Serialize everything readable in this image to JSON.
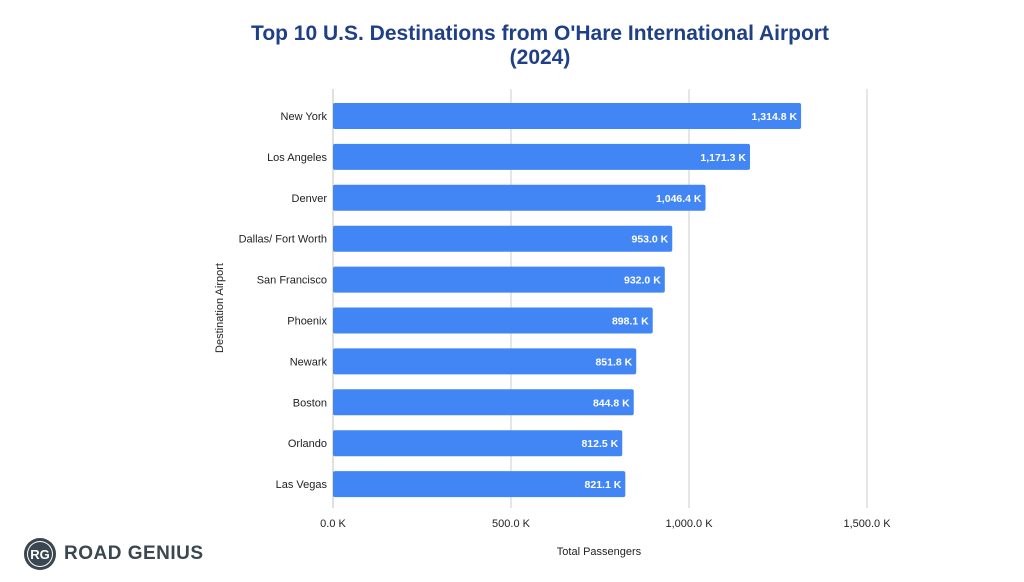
{
  "brand": {
    "badge": "RG",
    "name": "ROAD GENIUS"
  },
  "chart_data": {
    "type": "bar",
    "orientation": "horizontal",
    "title_line1": "Top 10 U.S. Destinations from O'Hare International Airport",
    "title_line2": "(2024)",
    "xlabel": "Total Passengers",
    "ylabel": "Destination Airport",
    "xlim": [
      0,
      1500
    ],
    "x_ticks": [
      {
        "value": 0,
        "label": "0.0 K"
      },
      {
        "value": 500,
        "label": "500.0 K"
      },
      {
        "value": 1000,
        "label": "1,000.0 K"
      },
      {
        "value": 1500,
        "label": "1,500.0 K"
      }
    ],
    "grid": true,
    "bar_color": "#4285f4",
    "grid_color": "#cccccc",
    "categories": [
      "New York",
      "Los Angeles",
      "Denver",
      "Dallas/ Fort Worth",
      "San Francisco",
      "Phoenix",
      "Newark",
      "Boston",
      "Orlando",
      "Las Vegas"
    ],
    "values": [
      1314.8,
      1171.3,
      1046.4,
      953.0,
      932.0,
      898.1,
      851.8,
      844.8,
      812.5,
      821.1
    ],
    "value_labels": [
      "1,314.8 K",
      "1,171.3 K",
      "1,046.4 K",
      "953.0 K",
      "932.0 K",
      "898.1 K",
      "851.8 K",
      "844.8 K",
      "812.5 K",
      "821.1 K"
    ]
  }
}
